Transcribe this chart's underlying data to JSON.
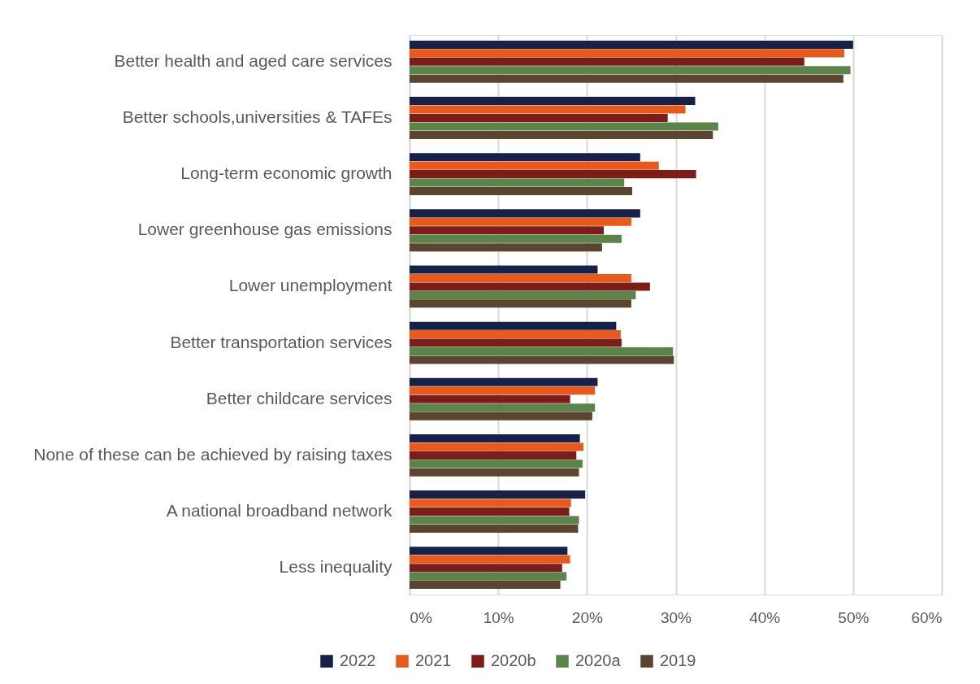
{
  "chart_data": {
    "type": "bar",
    "orientation": "horizontal",
    "categories": [
      "Better health and aged care services",
      "Better schools,universities & TAFEs",
      "Long-term economic growth",
      "Lower greenhouse gas emissions",
      "Lower unemployment",
      "Better transportation services",
      "Better childcare services",
      "None of these can be achieved by raising taxes",
      "A national broadband network",
      "Less inequality"
    ],
    "series": [
      {
        "name": "2022",
        "color": "#172047",
        "values": [
          50.0,
          32.2,
          26.0,
          26.0,
          21.2,
          23.3,
          21.2,
          19.2,
          19.8,
          17.8
        ]
      },
      {
        "name": "2021",
        "color": "#e65a1e",
        "values": [
          49.0,
          31.1,
          28.1,
          25.0,
          25.0,
          23.8,
          20.9,
          19.6,
          18.2,
          18.1
        ]
      },
      {
        "name": "2020b",
        "color": "#7b1e1a",
        "values": [
          44.5,
          29.1,
          32.3,
          21.9,
          27.1,
          23.9,
          18.1,
          18.8,
          18.0,
          17.2
        ]
      },
      {
        "name": "2020a",
        "color": "#5b834a",
        "values": [
          49.7,
          34.8,
          24.2,
          23.9,
          25.5,
          29.7,
          20.9,
          19.5,
          19.1,
          17.7
        ]
      },
      {
        "name": "2019",
        "color": "#5a4630",
        "values": [
          48.9,
          34.2,
          25.1,
          21.7,
          25.0,
          29.8,
          20.6,
          19.1,
          19.0,
          17.0
        ]
      }
    ],
    "xlim": [
      0,
      60
    ],
    "xticks": [
      {
        "value": 0,
        "label": "0%"
      },
      {
        "value": 10,
        "label": "10%"
      },
      {
        "value": 20,
        "label": "20%"
      },
      {
        "value": 30,
        "label": "30%"
      },
      {
        "value": 40,
        "label": "40%"
      },
      {
        "value": 50,
        "label": "50%"
      },
      {
        "value": 60,
        "label": "60%"
      }
    ],
    "grid": "x",
    "legend": "bottom"
  }
}
